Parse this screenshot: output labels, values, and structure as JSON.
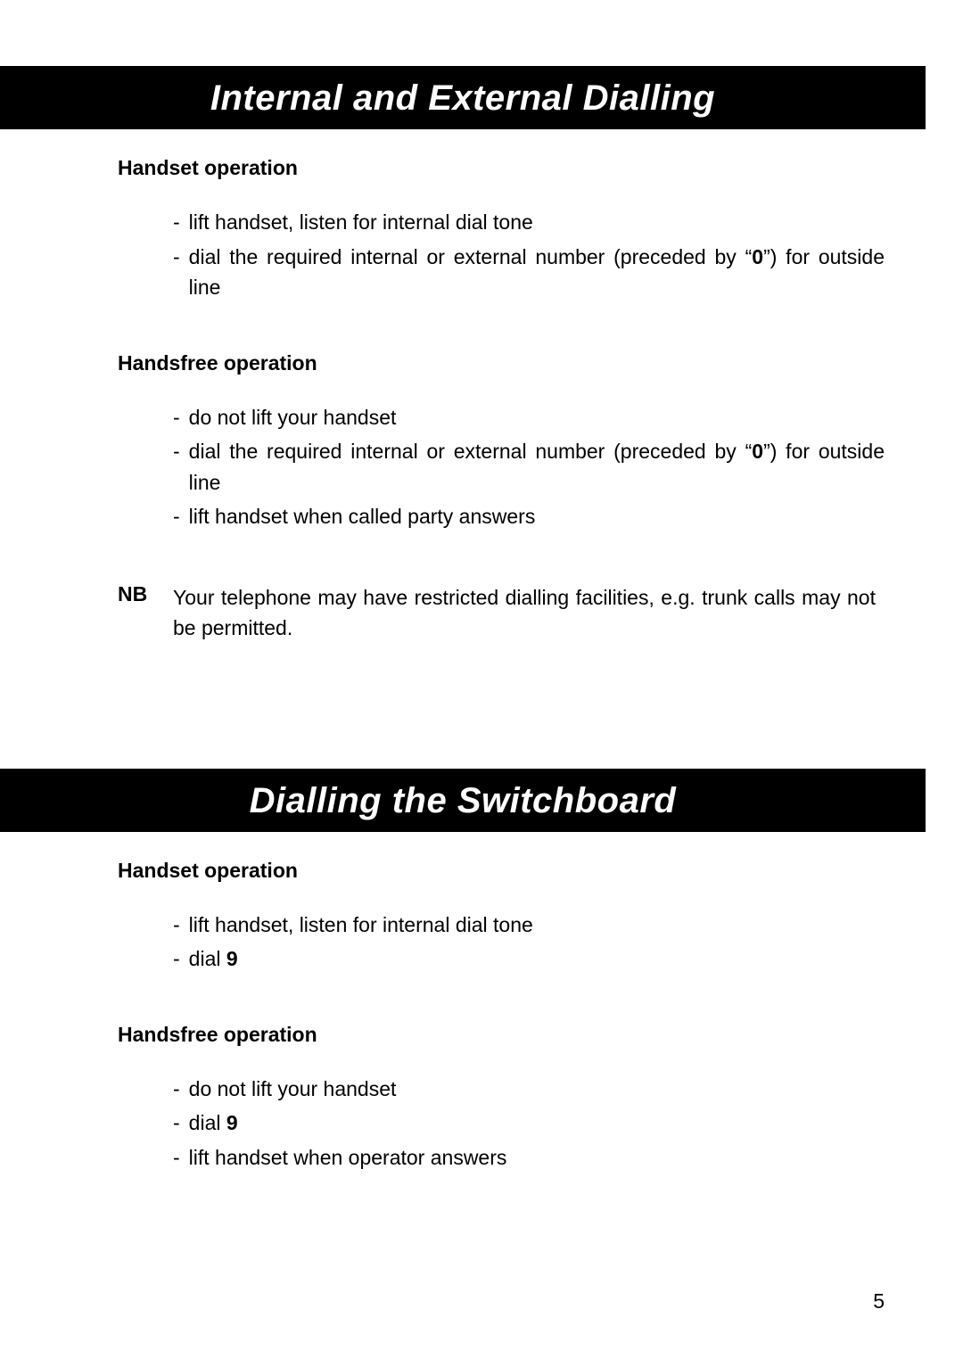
{
  "page": {
    "number": "5",
    "background_color": "#ffffff",
    "text_color": "#000000"
  },
  "sections": [
    {
      "heading": "Internal and External Dialling",
      "subs": [
        {
          "title": "Handset operation",
          "items": [
            {
              "text": "lift handset, listen for internal dial tone"
            },
            {
              "text_parts": [
                "dial the required internal or external number (preceded by “",
                {
                  "bold": "0"
                },
                "”) for outside line"
              ]
            }
          ]
        },
        {
          "title": "Handsfree operation",
          "items": [
            {
              "text": "do not lift your handset"
            },
            {
              "text_parts": [
                "dial the required internal or external number (preceded by “",
                {
                  "bold": "0"
                },
                "”) for outside line"
              ]
            },
            {
              "text": "lift handset when called party answers"
            }
          ]
        }
      ],
      "note": {
        "label": "NB",
        "text": "Your telephone may have restricted dialling facilities, e.g. trunk calls may not be permitted."
      }
    },
    {
      "heading": "Dialling the Switchboard",
      "subs": [
        {
          "title": "Handset operation",
          "items": [
            {
              "text": "lift handset, listen for internal dial tone"
            },
            {
              "text_parts": [
                "dial ",
                {
                  "bold": "9"
                }
              ]
            }
          ]
        },
        {
          "title": "Handsfree operation",
          "items": [
            {
              "text": "do not lift your handset"
            },
            {
              "text_parts": [
                "dial ",
                {
                  "bold": "9"
                }
              ]
            },
            {
              "text": "lift handset when operator answers"
            }
          ]
        }
      ]
    }
  ]
}
